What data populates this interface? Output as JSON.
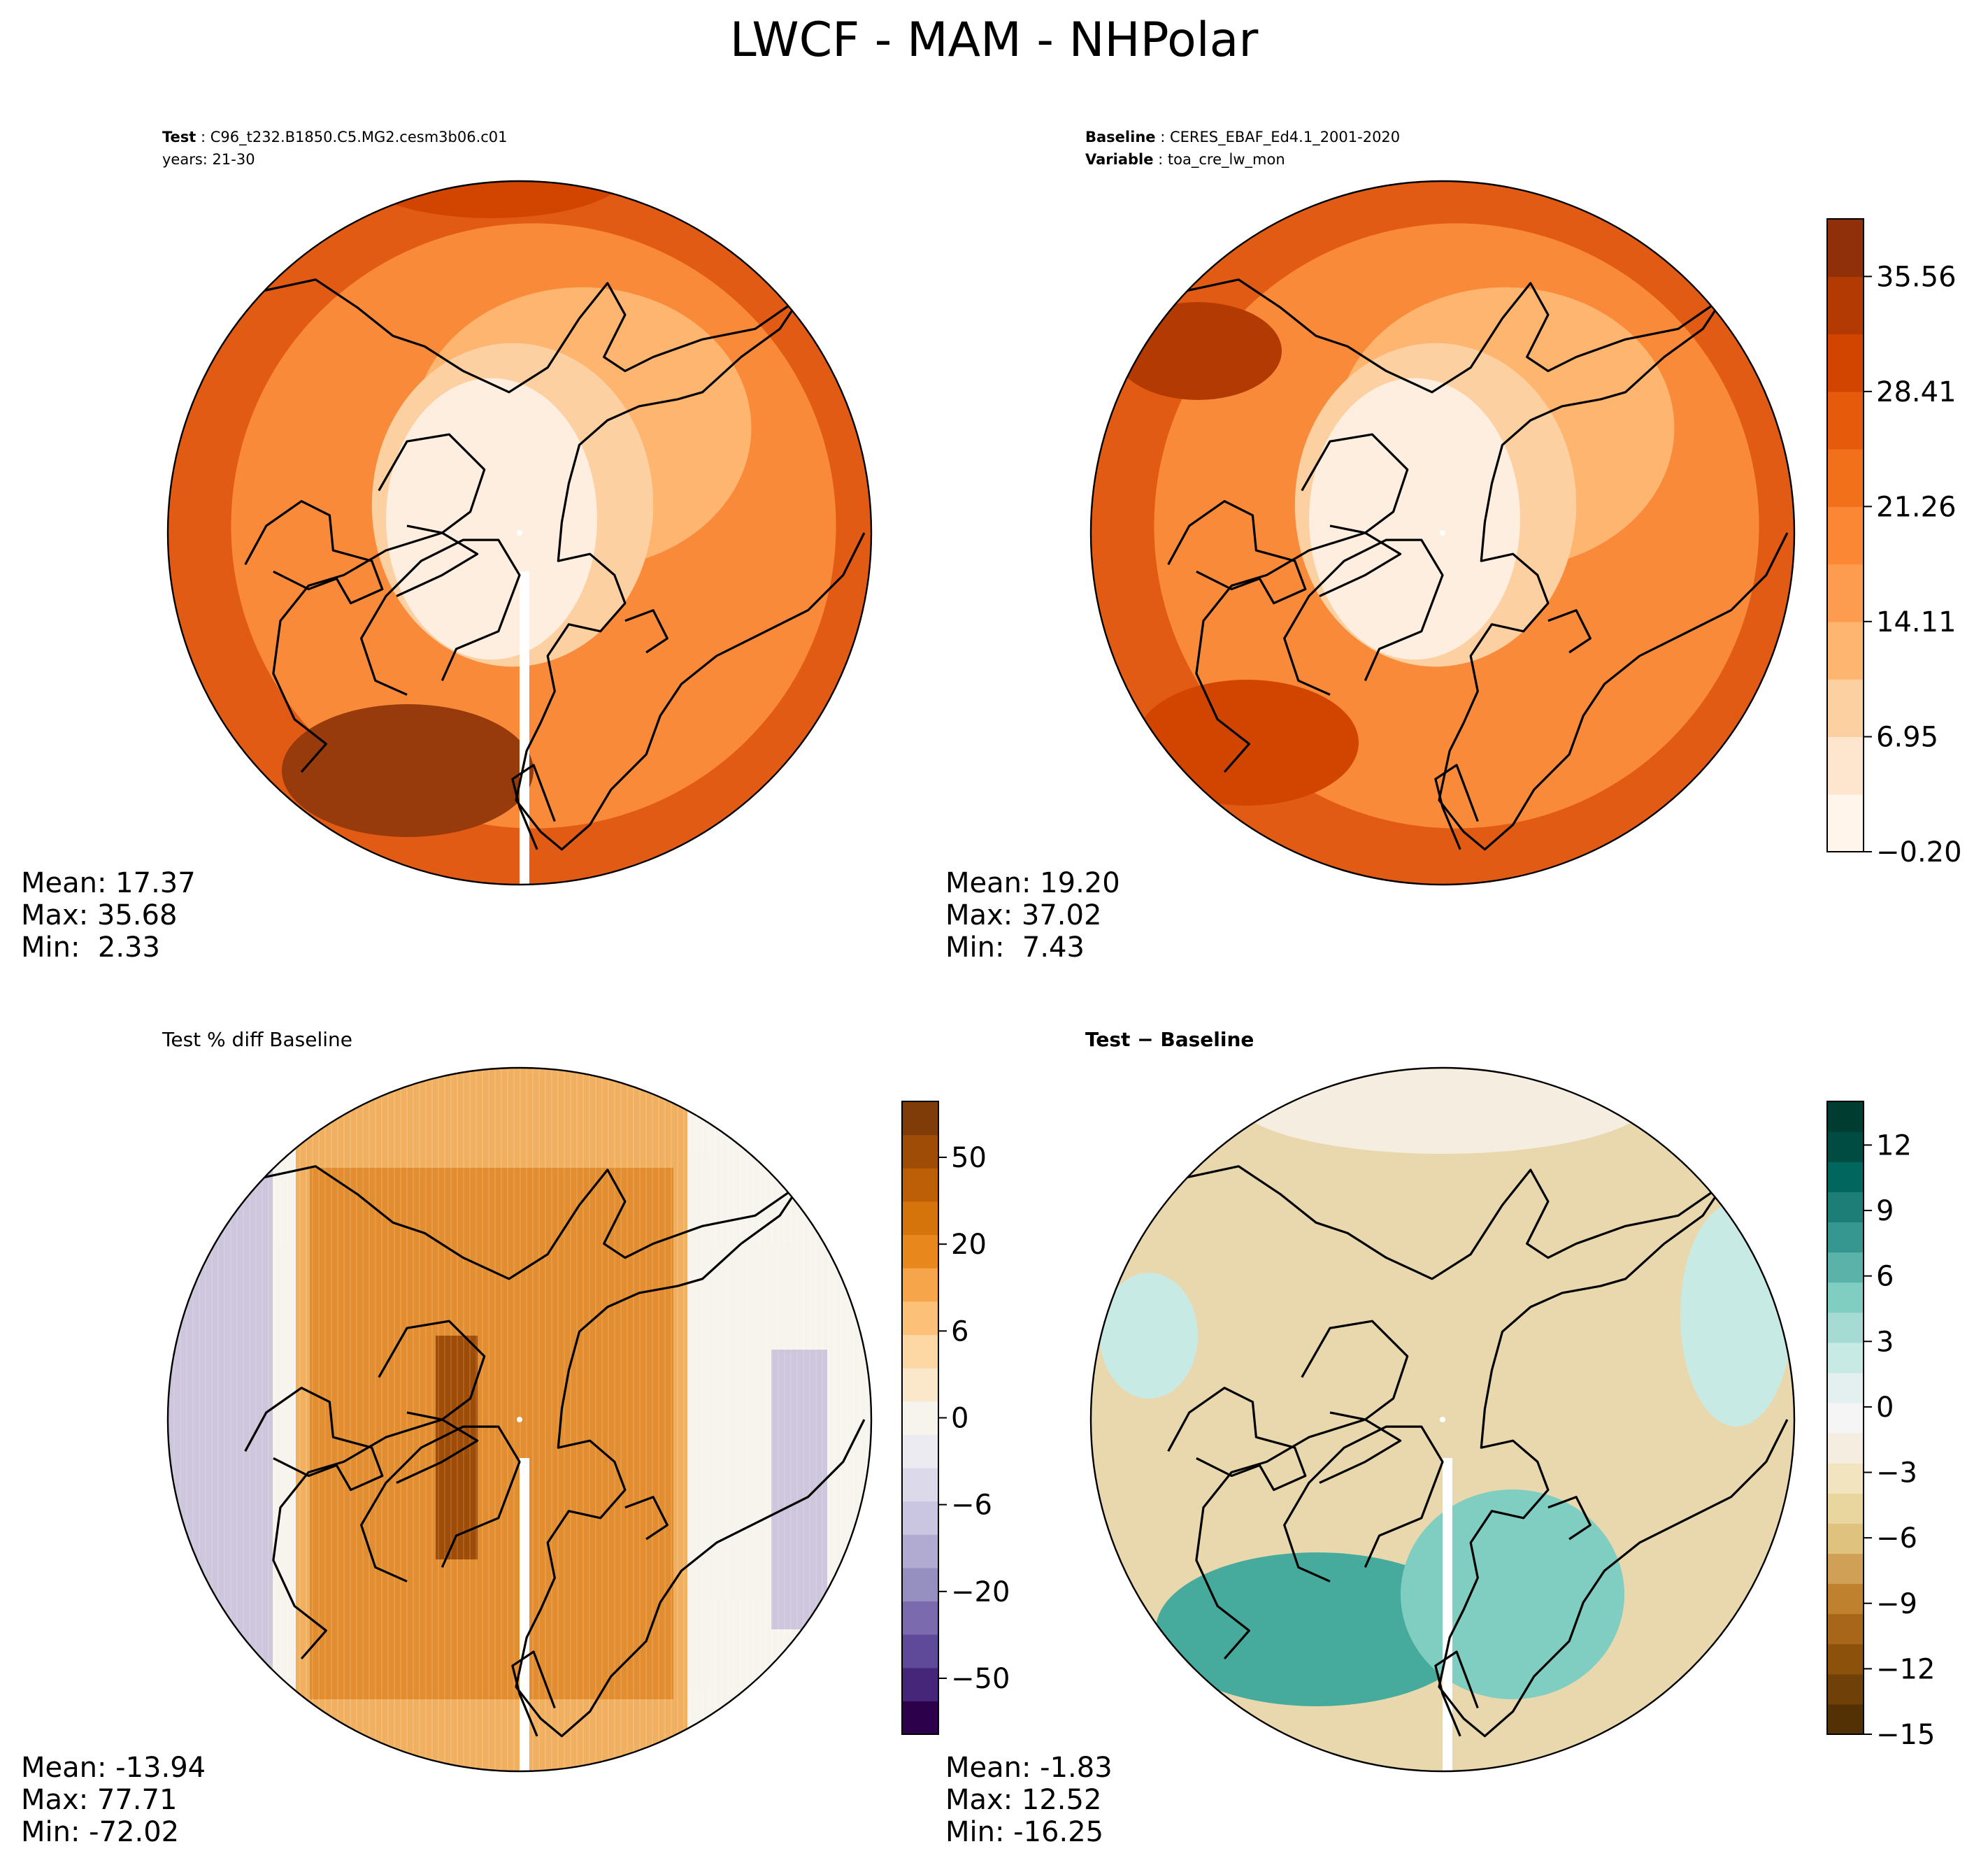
{
  "figure": {
    "title": "LWCF - MAM - NHPolar"
  },
  "panels": {
    "test": {
      "label_key_1": "Test",
      "label_val_1": "C96_t232.B1850.C5.MG2.cesm3b06.c01",
      "label_line_2": "years: 21-30",
      "stats": {
        "mean": "Mean: 17.37",
        "max": "Max: 35.68",
        "min": "Min:  2.33"
      }
    },
    "baseline": {
      "label_key_1": "Baseline",
      "label_val_1": "CERES_EBAF_Ed4.1_2001-2020",
      "label_key_2": "Variable",
      "label_val_2": "toa_cre_lw_mon",
      "stats": {
        "mean": "Mean: 19.20",
        "max": "Max: 37.02",
        "min": "Min:  7.43"
      }
    },
    "pctdiff": {
      "subtitle": "Test % diff Baseline",
      "stats": {
        "mean": "Mean: -13.94",
        "max": "Max: 77.71",
        "min": "Min: -72.02"
      }
    },
    "diff": {
      "subtitle": "Test − Baseline",
      "stats": {
        "mean": "Mean: -1.83",
        "max": "Max: 12.52",
        "min": "Min: -16.25"
      }
    }
  },
  "colorbars": {
    "field": {
      "ticks": [
        "35.56",
        "28.41",
        "21.26",
        "14.11",
        "6.95",
        "−0.20"
      ],
      "tick_values": [
        35.56,
        28.41,
        21.26,
        14.11,
        6.95,
        -0.2
      ],
      "range": [
        -0.2,
        39.14
      ],
      "levels": 11,
      "colors": [
        "#fff5eb",
        "#fee6ce",
        "#fdd0a2",
        "#fdb56f",
        "#fd9c4f",
        "#fb8634",
        "#f3701b",
        "#e55a0b",
        "#d14501",
        "#b33a02",
        "#90300b"
      ]
    },
    "pctdiff": {
      "ticks": [
        "50",
        "20",
        "6",
        "0",
        "−6",
        "−20",
        "−50"
      ],
      "colors": [
        "#2d004b",
        "#452679",
        "#5e4a98",
        "#7b6aad",
        "#9690c1",
        "#b1abd2",
        "#cac6e1",
        "#dcdaea",
        "#ebebf1",
        "#f7f4ee",
        "#fbe8cb",
        "#fdd7a4",
        "#fcc078",
        "#f7a54a",
        "#e8881c",
        "#d6740c",
        "#bd5f07",
        "#9f4c06",
        "#7f3b08"
      ]
    },
    "diff": {
      "ticks": [
        "12",
        "9",
        "6",
        "3",
        "0",
        "−3",
        "−6",
        "−9",
        "−12",
        "−15"
      ],
      "tick_values": [
        12,
        9,
        6,
        3,
        0,
        -3,
        -6,
        -9,
        -12,
        -15
      ],
      "range": [
        -15,
        14
      ],
      "colors": [
        "#543005",
        "#6f4109",
        "#8c510a",
        "#a8661a",
        "#bf812d",
        "#cfa055",
        "#dfc27d",
        "#e9d59e",
        "#f2e4bf",
        "#f5ede0",
        "#f5f5f5",
        "#e4f0ef",
        "#c7eae5",
        "#a5dbd2",
        "#80cdc1",
        "#5ab2a8",
        "#35978f",
        "#1c7e76",
        "#01665e",
        "#004c42",
        "#003c30"
      ]
    }
  },
  "fill_colors": {
    "field_pole": "#feeee0",
    "field_mid": "#f98a3a",
    "field_edge": "#e25b14",
    "field_max": "#973a0c",
    "pct_main": "#e08a2a",
    "pct_low": "#b2a7d0",
    "diff_main": "#e9d8ad",
    "diff_teal": "#46ab9d"
  }
}
